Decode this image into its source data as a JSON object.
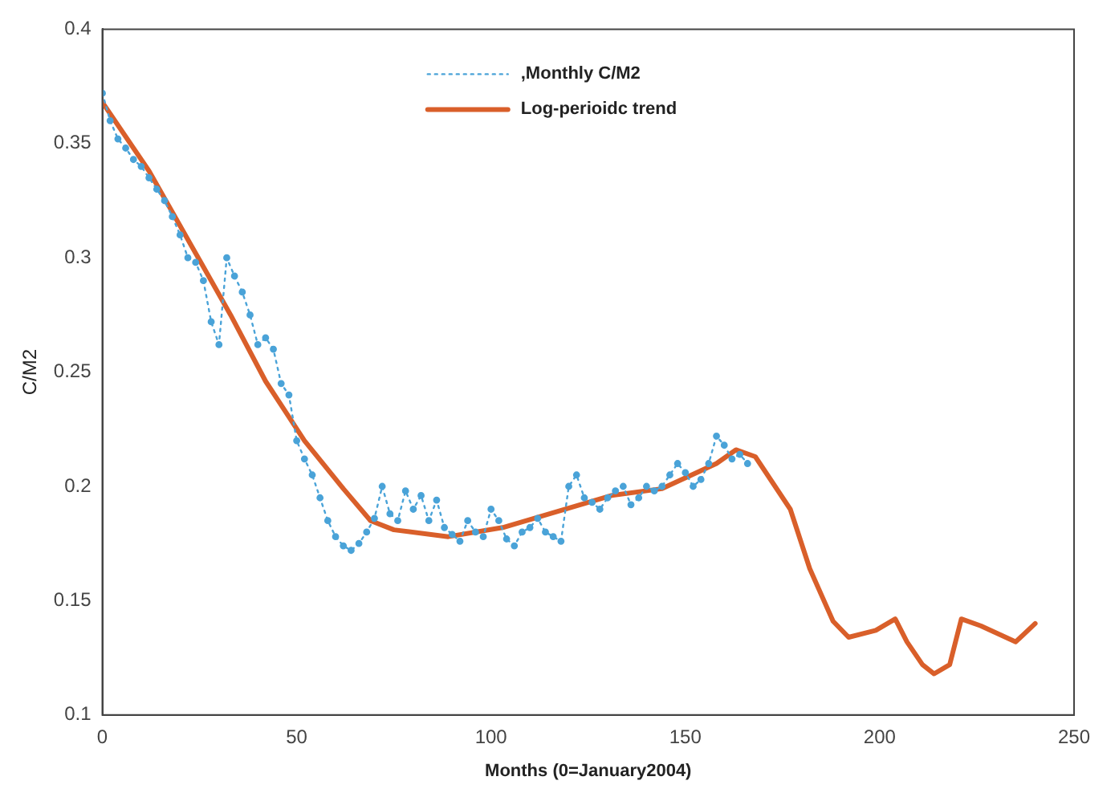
{
  "chart_data": {
    "type": "line",
    "xlabel": "Months (0=January2004)",
    "ylabel": "C/M2",
    "xlim": [
      0,
      250
    ],
    "xticks": [
      0,
      50,
      100,
      150,
      200,
      250
    ],
    "ylim": [
      0.1,
      0.4
    ],
    "yticks": [
      0.1,
      0.15,
      0.2,
      0.25,
      0.3,
      0.35,
      0.4
    ],
    "grid": false,
    "legend": "top",
    "series": [
      {
        "name": ",Monthly C/M2",
        "color": "#4aa3d8",
        "marker": "circle",
        "line_style": "dotted",
        "x": [
          0,
          2,
          4,
          6,
          8,
          10,
          12,
          14,
          16,
          18,
          20,
          22,
          24,
          26,
          28,
          30,
          32,
          34,
          36,
          38,
          40,
          42,
          44,
          46,
          48,
          50,
          52,
          54,
          56,
          58,
          60,
          62,
          64,
          66,
          68,
          70,
          72,
          74,
          76,
          78,
          80,
          82,
          84,
          86,
          88,
          90,
          92,
          94,
          96,
          98,
          100,
          102,
          104,
          106,
          108,
          110,
          112,
          114,
          116,
          118,
          120,
          122,
          124,
          126,
          128,
          130,
          132,
          134,
          136,
          138,
          140,
          142,
          144,
          146,
          148,
          150,
          152,
          154,
          156,
          158,
          160,
          162,
          164,
          166
        ],
        "values": [
          0.372,
          0.36,
          0.352,
          0.348,
          0.343,
          0.34,
          0.335,
          0.33,
          0.325,
          0.318,
          0.31,
          0.3,
          0.298,
          0.29,
          0.272,
          0.262,
          0.3,
          0.292,
          0.285,
          0.275,
          0.262,
          0.265,
          0.26,
          0.245,
          0.24,
          0.22,
          0.212,
          0.205,
          0.195,
          0.185,
          0.178,
          0.174,
          0.172,
          0.175,
          0.18,
          0.186,
          0.2,
          0.188,
          0.185,
          0.198,
          0.19,
          0.196,
          0.185,
          0.194,
          0.182,
          0.179,
          0.176,
          0.185,
          0.18,
          0.178,
          0.19,
          0.185,
          0.177,
          0.174,
          0.18,
          0.182,
          0.186,
          0.18,
          0.178,
          0.176,
          0.2,
          0.205,
          0.195,
          0.193,
          0.19,
          0.195,
          0.198,
          0.2,
          0.192,
          0.195,
          0.2,
          0.198,
          0.2,
          0.205,
          0.21,
          0.206,
          0.2,
          0.203,
          0.21,
          0.222,
          0.218,
          0.212,
          0.214,
          0.21
        ]
      },
      {
        "name": "Log-perioidc trend",
        "color": "#d95f2a",
        "marker": "none",
        "line_style": "solid",
        "x": [
          0,
          12,
          23,
          33,
          42,
          52,
          62,
          69,
          75,
          89,
          103,
          117,
          131,
          144,
          158,
          163,
          168,
          177,
          182,
          188,
          192,
          199,
          204,
          207,
          211,
          214,
          218,
          221,
          226,
          235,
          240
        ],
        "values": [
          0.368,
          0.338,
          0.305,
          0.275,
          0.246,
          0.22,
          0.199,
          0.185,
          0.181,
          0.178,
          0.182,
          0.189,
          0.196,
          0.199,
          0.21,
          0.216,
          0.213,
          0.19,
          0.164,
          0.141,
          0.134,
          0.137,
          0.142,
          0.132,
          0.122,
          0.118,
          0.122,
          0.142,
          0.139,
          0.132,
          0.14
        ]
      }
    ]
  }
}
